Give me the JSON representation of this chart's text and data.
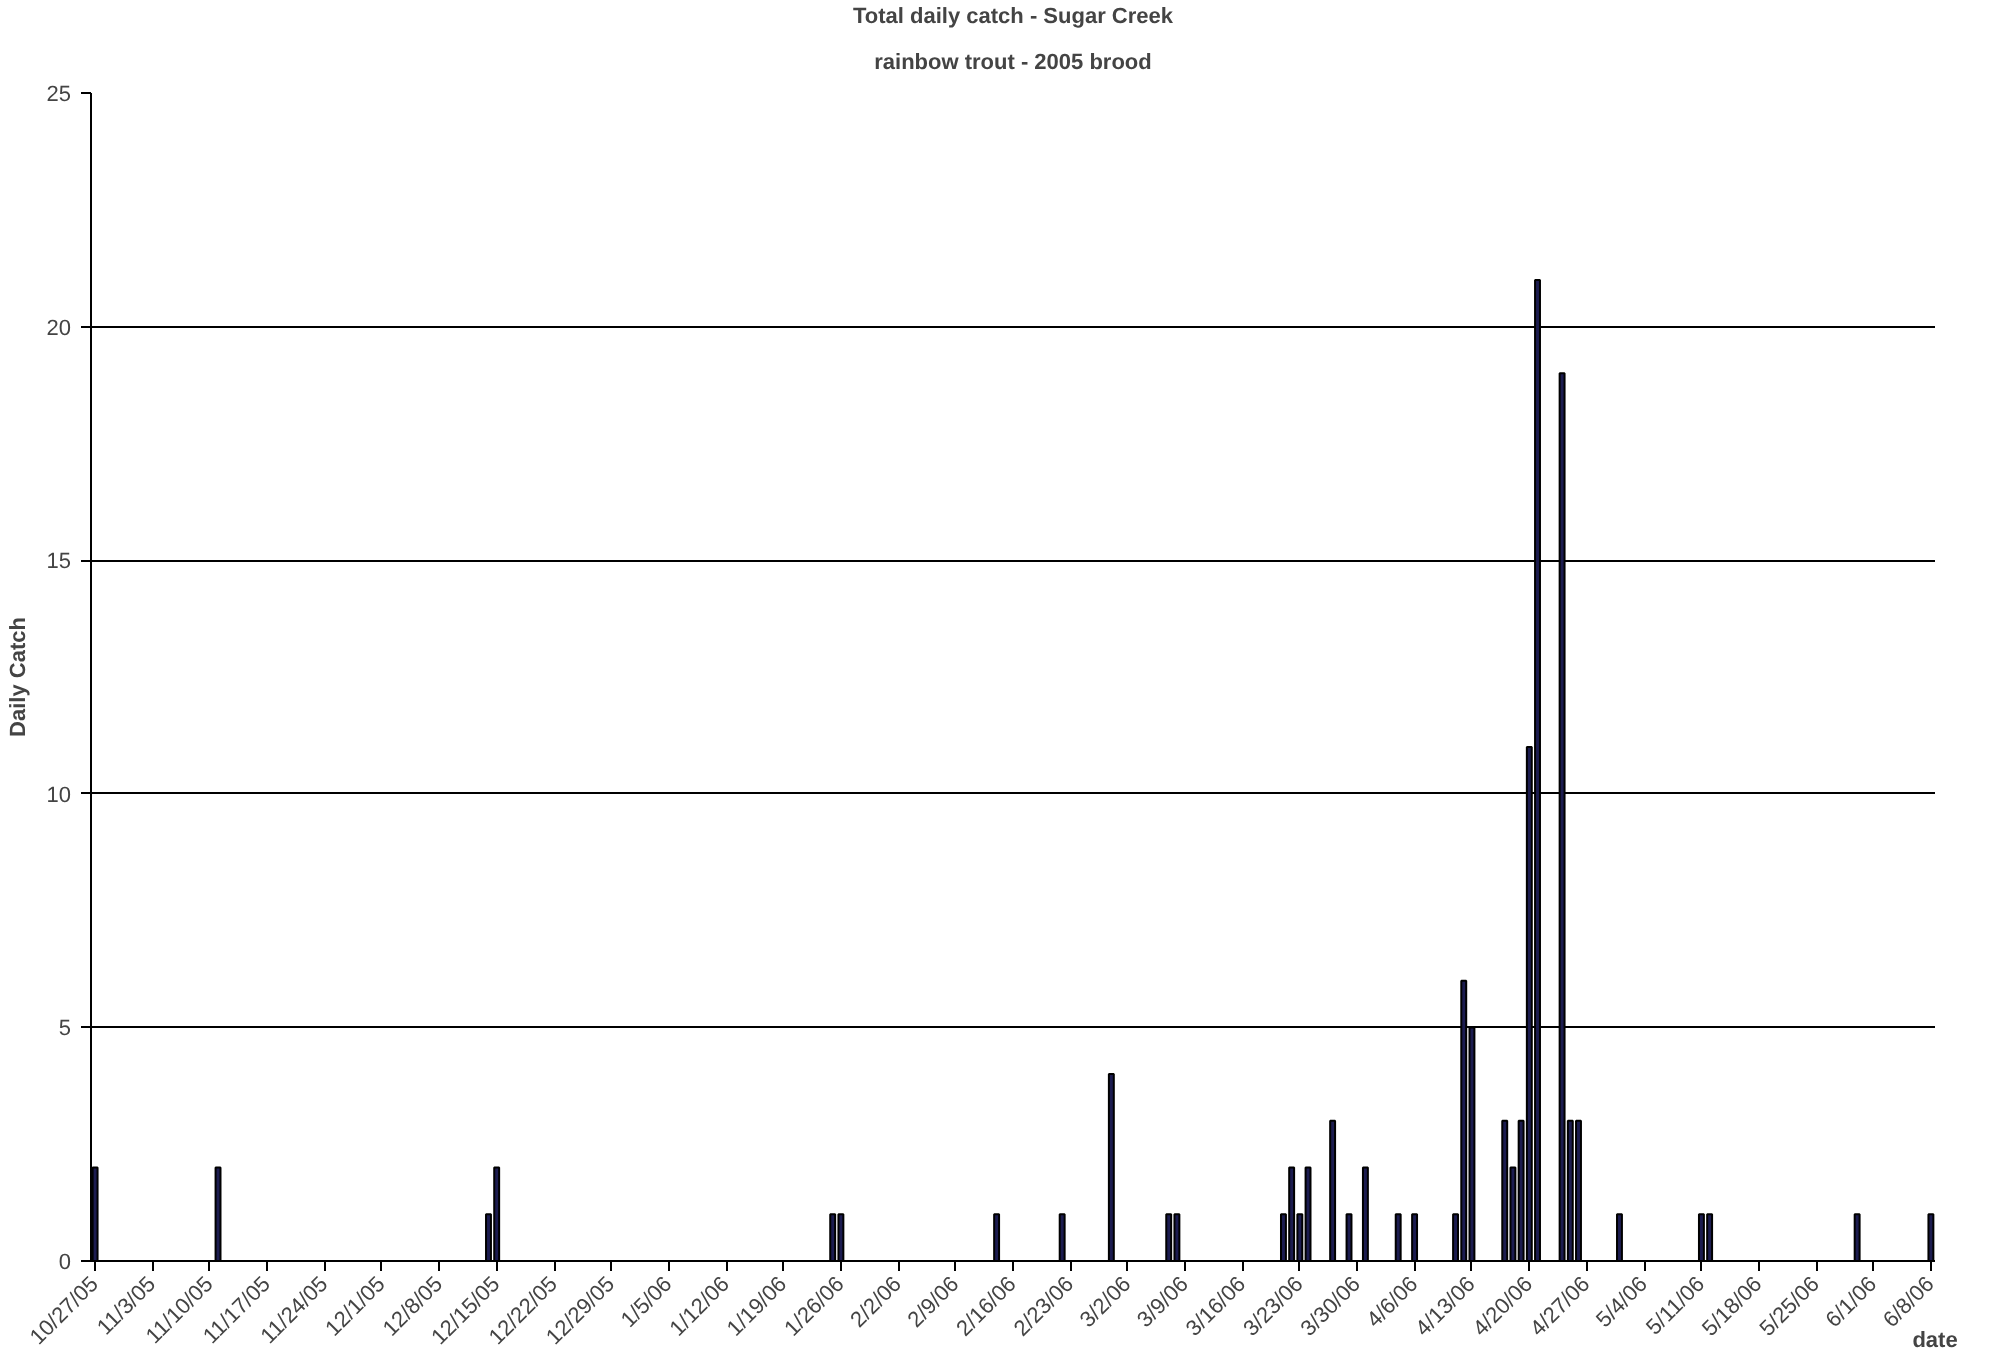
{
  "chart_data": {
    "type": "bar",
    "title": "Total daily catch - Sugar Creek",
    "subtitle": "rainbow trout - 2005 brood",
    "xlabel": "date",
    "ylabel": "Daily Catch",
    "x": [
      "2005-10-27",
      "2005-11-11",
      "2005-12-14",
      "2005-12-15",
      "2006-01-25",
      "2006-01-26",
      "2006-02-14",
      "2006-02-22",
      "2006-02-28",
      "2006-03-07",
      "2006-03-08",
      "2006-03-21",
      "2006-03-22",
      "2006-03-23",
      "2006-03-24",
      "2006-03-27",
      "2006-03-29",
      "2006-03-31",
      "2006-04-04",
      "2006-04-06",
      "2006-04-11",
      "2006-04-12",
      "2006-04-13",
      "2006-04-17",
      "2006-04-18",
      "2006-04-19",
      "2006-04-20",
      "2006-04-21",
      "2006-04-24",
      "2006-04-25",
      "2006-04-26",
      "2006-05-01",
      "2006-05-11",
      "2006-05-12",
      "2006-05-30",
      "2006-06-08"
    ],
    "values": [
      2,
      2,
      1,
      2,
      1,
      1,
      1,
      1,
      4,
      1,
      1,
      1,
      2,
      1,
      2,
      3,
      1,
      2,
      1,
      1,
      1,
      6,
      5,
      3,
      2,
      3,
      11,
      21,
      19,
      3,
      3,
      1,
      1,
      1,
      1,
      1
    ],
    "color": "#1c1c50",
    "xlim": [
      "2005-10-26T12:00",
      "2006-06-08T12:00"
    ],
    "xticks": [
      {
        "value": "2005-10-27",
        "label": "10/27/05"
      },
      {
        "value": "2005-11-03",
        "label": "11/3/05"
      },
      {
        "value": "2005-11-10",
        "label": "11/10/05"
      },
      {
        "value": "2005-11-17",
        "label": "11/17/05"
      },
      {
        "value": "2005-11-24",
        "label": "11/24/05"
      },
      {
        "value": "2005-12-01",
        "label": "12/1/05"
      },
      {
        "value": "2005-12-08",
        "label": "12/8/05"
      },
      {
        "value": "2005-12-15",
        "label": "12/15/05"
      },
      {
        "value": "2005-12-22",
        "label": "12/22/05"
      },
      {
        "value": "2005-12-29",
        "label": "12/29/05"
      },
      {
        "value": "2006-01-05",
        "label": "1/5/06"
      },
      {
        "value": "2006-01-12",
        "label": "1/12/06"
      },
      {
        "value": "2006-01-19",
        "label": "1/19/06"
      },
      {
        "value": "2006-01-26",
        "label": "1/26/06"
      },
      {
        "value": "2006-02-02",
        "label": "2/2/06"
      },
      {
        "value": "2006-02-09",
        "label": "2/9/06"
      },
      {
        "value": "2006-02-16",
        "label": "2/16/06"
      },
      {
        "value": "2006-02-23",
        "label": "2/23/06"
      },
      {
        "value": "2006-03-02",
        "label": "3/2/06"
      },
      {
        "value": "2006-03-09",
        "label": "3/9/06"
      },
      {
        "value": "2006-03-16",
        "label": "3/16/06"
      },
      {
        "value": "2006-03-23",
        "label": "3/23/06"
      },
      {
        "value": "2006-03-30",
        "label": "3/30/06"
      },
      {
        "value": "2006-04-06",
        "label": "4/6/06"
      },
      {
        "value": "2006-04-13",
        "label": "4/13/06"
      },
      {
        "value": "2006-04-20",
        "label": "4/20/06"
      },
      {
        "value": "2006-04-27",
        "label": "4/27/06"
      },
      {
        "value": "2006-05-04",
        "label": "5/4/06"
      },
      {
        "value": "2006-05-11",
        "label": "5/11/06"
      },
      {
        "value": "2006-05-18",
        "label": "5/18/06"
      },
      {
        "value": "2006-05-25",
        "label": "5/25/06"
      },
      {
        "value": "2006-06-01",
        "label": "6/1/06"
      },
      {
        "value": "2006-06-08",
        "label": "6/8/06"
      }
    ],
    "ylim": [
      0,
      25
    ],
    "yticks": [
      0,
      5,
      10,
      15,
      20,
      25
    ],
    "grid": "y"
  }
}
